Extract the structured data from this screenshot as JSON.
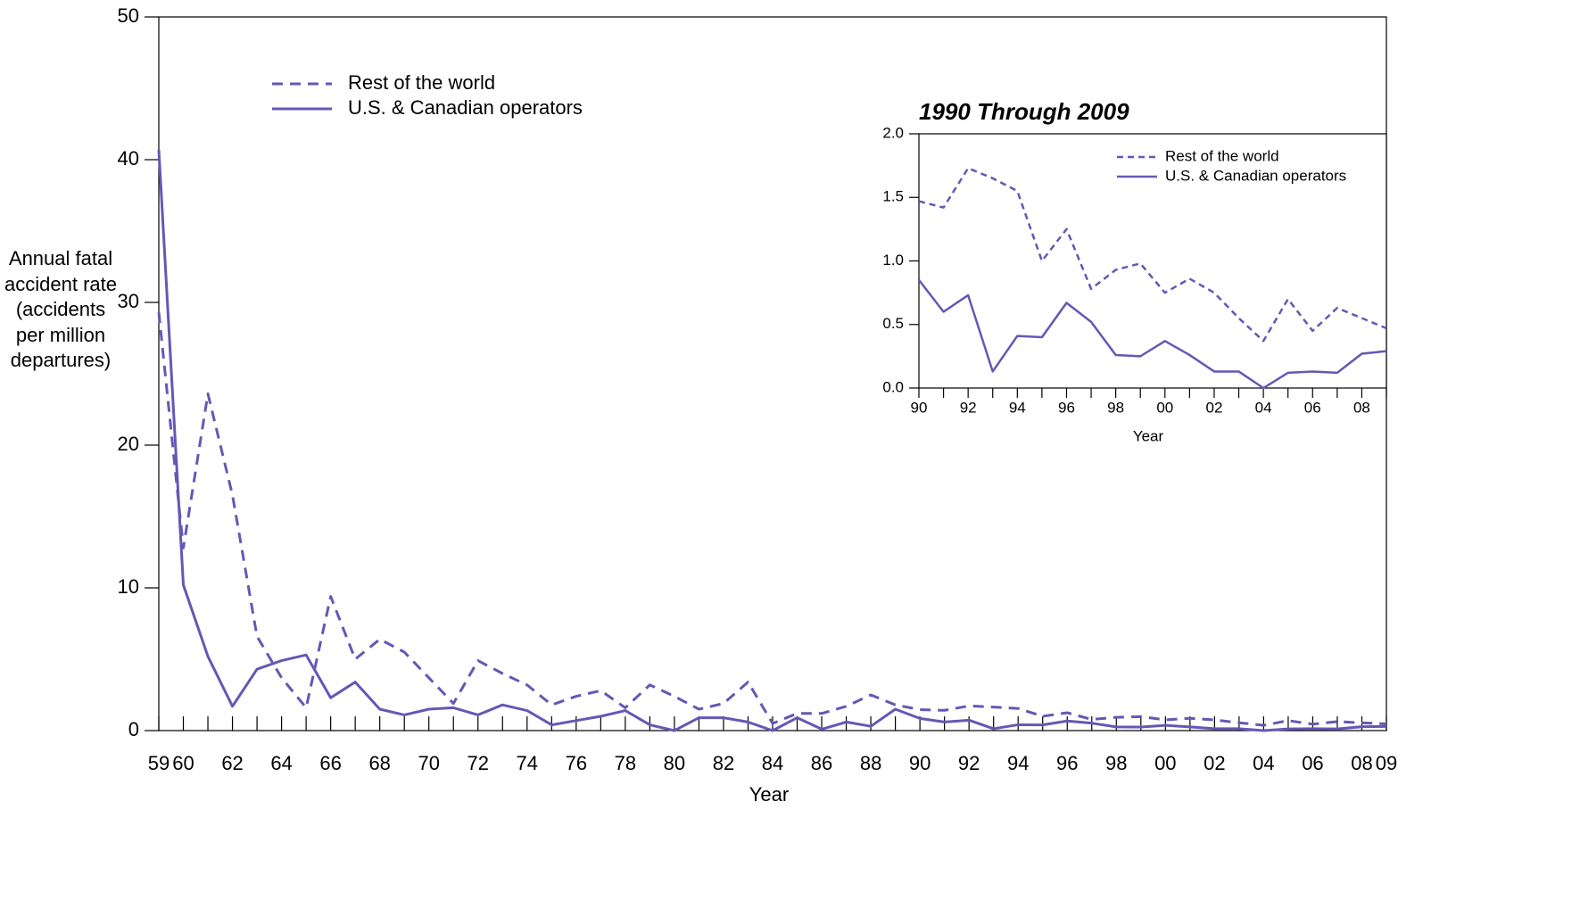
{
  "chart_data": [
    {
      "type": "line",
      "ylabel": "Annual fatal accident rate (accidents per million departures)",
      "xlabel": "Year",
      "categories": [
        "59",
        "60",
        null,
        "62",
        null,
        "64",
        null,
        "66",
        null,
        "68",
        null,
        "70",
        null,
        "72",
        null,
        "74",
        null,
        "76",
        null,
        "78",
        null,
        "80",
        null,
        "82",
        null,
        "84",
        null,
        "86",
        null,
        "88",
        null,
        "90",
        null,
        "92",
        null,
        "94",
        null,
        "96",
        null,
        "98",
        null,
        "00",
        null,
        "02",
        null,
        "04",
        null,
        "06",
        null,
        "08",
        "09"
      ],
      "series": [
        {
          "name": "Rest of the world",
          "color": "#6657b5",
          "line_style": "dashed",
          "values": [
            29.3,
            12.8,
            23.6,
            16.5,
            6.6,
            3.7,
            1.6,
            9.4,
            5.0,
            6.4,
            5.5,
            3.7,
            1.9,
            4.9,
            4.0,
            3.2,
            1.8,
            2.4,
            2.8,
            1.6,
            3.2,
            2.4,
            1.5,
            1.9,
            3.4,
            0.5,
            1.2,
            1.2,
            1.7,
            2.5,
            1.8,
            1.47,
            1.42,
            1.73,
            1.65,
            1.55,
            1.0,
            1.25,
            0.78,
            0.93,
            0.98,
            0.75,
            0.86,
            0.75,
            0.55,
            0.37,
            0.7,
            0.45,
            0.63,
            0.55,
            0.47
          ]
        },
        {
          "name": "U.S. & Canadian operators",
          "color": "#6657b5",
          "line_style": "solid",
          "values": [
            40.7,
            10.2,
            5.2,
            1.7,
            4.3,
            4.9,
            5.3,
            2.3,
            3.4,
            1.5,
            1.1,
            1.5,
            1.6,
            1.1,
            1.8,
            1.4,
            0.4,
            0.7,
            1.0,
            1.4,
            0.4,
            0.0,
            0.9,
            0.9,
            0.6,
            0.0,
            0.9,
            0.1,
            0.6,
            0.3,
            1.5,
            0.85,
            0.6,
            0.73,
            0.13,
            0.41,
            0.4,
            0.67,
            0.52,
            0.26,
            0.25,
            0.37,
            0.26,
            0.13,
            0.13,
            0.0,
            0.12,
            0.13,
            0.12,
            0.27,
            0.29
          ]
        }
      ],
      "ylim": [
        0,
        50
      ],
      "yticks": [
        0,
        10,
        20,
        30,
        40,
        50
      ]
    },
    {
      "type": "line",
      "title": "1990 Through 2009",
      "xlabel": "Year",
      "categories": [
        "90",
        null,
        "92",
        null,
        "94",
        null,
        "96",
        null,
        "98",
        null,
        "00",
        null,
        "02",
        null,
        "04",
        null,
        "06",
        null,
        "08",
        null
      ],
      "series": [
        {
          "name": "Rest of the world",
          "color": "#6657b5",
          "line_style": "dashed",
          "values": [
            1.47,
            1.42,
            1.73,
            1.65,
            1.55,
            1.0,
            1.25,
            0.78,
            0.93,
            0.98,
            0.75,
            0.86,
            0.75,
            0.55,
            0.37,
            0.7,
            0.45,
            0.63,
            0.55,
            0.47
          ]
        },
        {
          "name": "U.S. & Canadian operators",
          "color": "#6657b5",
          "line_style": "solid",
          "values": [
            0.85,
            0.6,
            0.73,
            0.13,
            0.41,
            0.4,
            0.67,
            0.52,
            0.26,
            0.25,
            0.37,
            0.26,
            0.13,
            0.13,
            0.0,
            0.12,
            0.13,
            0.12,
            0.27,
            0.29
          ]
        }
      ],
      "ylim": [
        0,
        2
      ],
      "yticks": [
        {
          "value": 0,
          "label": "0.0"
        },
        {
          "value": 0.5,
          "label": "0.5"
        },
        {
          "value": 1,
          "label": "1.0"
        },
        {
          "value": 1.5,
          "label": "1.5"
        },
        {
          "value": 2,
          "label": "2.0"
        }
      ]
    }
  ]
}
